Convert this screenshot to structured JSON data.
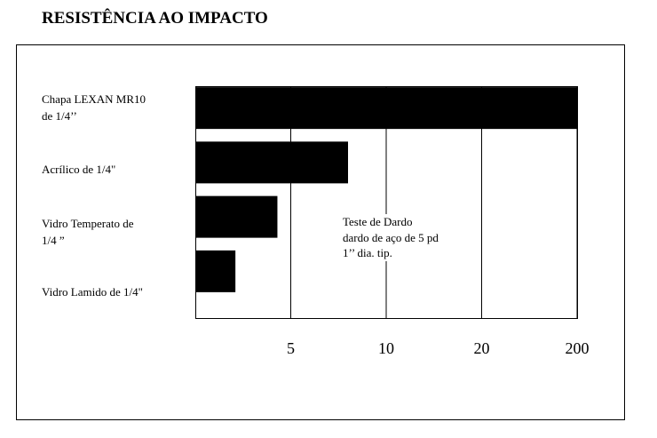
{
  "chart_data": {
    "type": "bar",
    "orientation": "horizontal",
    "title": "RESISTÊNCIA AO IMPACTO",
    "categories": [
      "Chapa LEXAN MR10\nde 1/4’’",
      "Acrílico de  1/4\"",
      "Vidro Temperato de\n1/4 ”",
      "Vidro Lamido de 1/4\""
    ],
    "values": [
      200,
      8,
      4.3,
      2.1
    ],
    "color": "#000000",
    "xlim": [
      0,
      200
    ],
    "xticks": [
      5,
      10,
      20,
      200
    ],
    "xscale": "tick-spaced",
    "grid": true,
    "annotation": "Teste de Dardo\ndardo de aço de 5 pd\n1’’ dia. tip."
  }
}
